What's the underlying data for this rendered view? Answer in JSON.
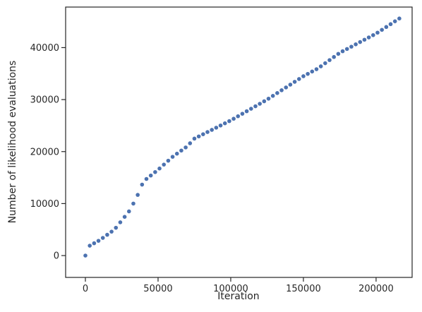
{
  "chart_data": {
    "type": "scatter",
    "xlabel": "Iteration",
    "ylabel": "Number of likelihood evaluations",
    "color": "#4c72b0",
    "xlim": [
      -13600,
      224800
    ],
    "ylim": [
      -4200,
      47800
    ],
    "xticks": [
      0,
      50000,
      100000,
      150000,
      200000
    ],
    "yticks": [
      0,
      10000,
      20000,
      30000,
      40000
    ],
    "x": [
      0,
      3000,
      6000,
      9000,
      12000,
      15000,
      18000,
      21000,
      24000,
      27000,
      30000,
      33000,
      36000,
      39000,
      42000,
      45000,
      48000,
      51000,
      54000,
      57000,
      60000,
      63000,
      66000,
      69000,
      72000,
      75000,
      78000,
      81000,
      84000,
      87000,
      90000,
      93000,
      96000,
      99000,
      102000,
      105000,
      108000,
      111000,
      114000,
      117000,
      120000,
      123000,
      126000,
      129000,
      132000,
      135000,
      138000,
      141000,
      144000,
      147000,
      150000,
      153000,
      156000,
      159000,
      162000,
      165000,
      168000,
      171000,
      174000,
      177000,
      180000,
      183000,
      186000,
      189000,
      192000,
      195000,
      198000,
      201000,
      204000,
      207000,
      210000,
      213000,
      216000
    ],
    "values": [
      0,
      1900,
      2370,
      2840,
      3400,
      4000,
      4600,
      5350,
      6400,
      7450,
      8500,
      10000,
      11670,
      13650,
      14740,
      15400,
      16060,
      16750,
      17500,
      18250,
      19000,
      19600,
      20200,
      20800,
      21600,
      22500,
      22920,
      23340,
      23760,
      24180,
      24600,
      25020,
      25440,
      25860,
      26320,
      26800,
      27280,
      27760,
      28240,
      28720,
      29200,
      29680,
      30180,
      30720,
      31260,
      31800,
      32340,
      32880,
      33420,
      33960,
      34500,
      34950,
      35400,
      35850,
      36400,
      37000,
      37600,
      38200,
      38800,
      39300,
      39740,
      40180,
      40630,
      41070,
      41520,
      41960,
      42400,
      42880,
      43420,
      43970,
      44510,
      45060,
      45600
    ]
  }
}
